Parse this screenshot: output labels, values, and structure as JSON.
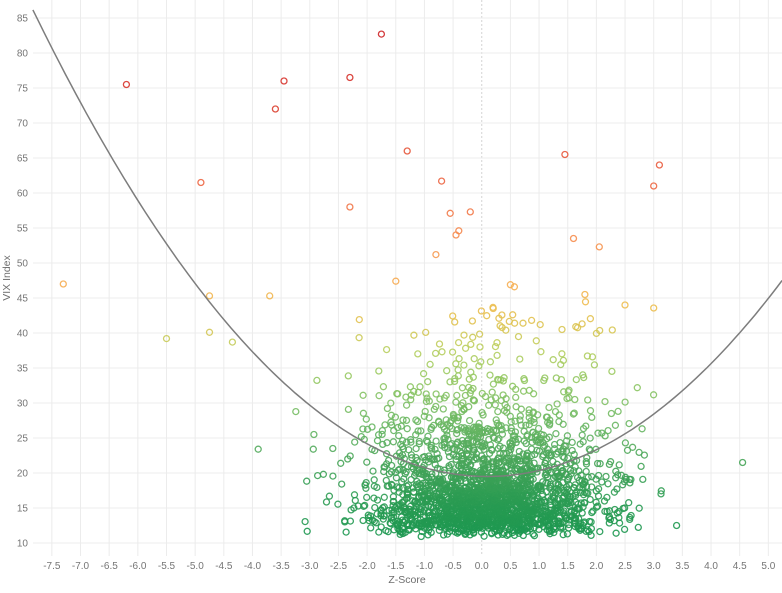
{
  "chart_data": {
    "type": "scatter",
    "title": "",
    "xlabel": "Z-Score",
    "ylabel": "VIX Index",
    "x_tick_labels": [
      "-7.5",
      "-7.0",
      "-6.5",
      "-6.0",
      "-5.5",
      "-5.0",
      "-4.5",
      "-4.0",
      "-3.5",
      "-3.0",
      "-2.5",
      "-2.0",
      "-1.5",
      "-1.0",
      "-0.5",
      "0.0",
      "0.5",
      "1.0",
      "1.5",
      "2.0",
      "2.5",
      "3.0",
      "3.5",
      "4.0",
      "4.5",
      "5.0"
    ],
    "y_tick_labels": [
      "10",
      "15",
      "20",
      "25",
      "30",
      "35",
      "40",
      "45",
      "50",
      "55",
      "60",
      "65",
      "70",
      "75",
      "80",
      "85"
    ],
    "xlim": [
      -7.83,
      5.24
    ],
    "ylim": [
      8.1,
      87.6
    ],
    "grid": true,
    "legend": "none",
    "colors": {
      "background": "#ffffff",
      "grid": "#ececec",
      "zero_line": "#d4d4d4",
      "tick_text": "#757575",
      "fit_curve": "#7d7d7d"
    },
    "marker": {
      "shape": "open-circle",
      "radius": 3.0,
      "stroke_width": 1.3,
      "opacity": 0.9
    },
    "color_scale_by_vix": [
      [
        10,
        "#199750"
      ],
      [
        16,
        "#2a9b52"
      ],
      [
        22,
        "#4aa65a"
      ],
      [
        27,
        "#6ab763"
      ],
      [
        31,
        "#84c264"
      ],
      [
        35,
        "#a0cc63"
      ],
      [
        38,
        "#bccf5e"
      ],
      [
        41,
        "#ddc452"
      ],
      [
        44,
        "#eebd4e"
      ],
      [
        47,
        "#f6ad52"
      ],
      [
        51,
        "#f79b51"
      ],
      [
        55,
        "#f5854c"
      ],
      [
        59,
        "#f07046"
      ],
      [
        64,
        "#e95c3e"
      ],
      [
        70,
        "#df4733"
      ],
      [
        76,
        "#d7332b"
      ],
      [
        85,
        "#cb2026"
      ]
    ],
    "fit_curve": {
      "type": "parabola",
      "equation": "vix = k + a*(z-h)^2",
      "a": 1.06,
      "h": 0.1,
      "k": 19.5,
      "z_domain": [
        -7.83,
        5.24
      ]
    },
    "outlier_points_z_vix": [
      [
        -6.2,
        75.5
      ],
      [
        -1.75,
        82.7
      ],
      [
        -3.45,
        76.0
      ],
      [
        -2.3,
        76.5
      ],
      [
        -3.6,
        72.0
      ],
      [
        -1.3,
        66.0
      ],
      [
        -0.7,
        61.7
      ],
      [
        -4.9,
        61.5
      ],
      [
        1.45,
        65.5
      ],
      [
        3.1,
        64.0
      ],
      [
        3.0,
        61.0
      ],
      [
        -2.3,
        58.0
      ],
      [
        -0.55,
        57.1
      ],
      [
        -0.2,
        57.3
      ],
      [
        -0.4,
        54.6
      ],
      [
        -0.45,
        54.0
      ],
      [
        -0.8,
        51.2
      ],
      [
        -1.5,
        47.4
      ],
      [
        -4.75,
        45.3
      ],
      [
        -3.7,
        45.3
      ],
      [
        -7.3,
        47.0
      ],
      [
        1.6,
        53.5
      ],
      [
        2.05,
        52.3
      ],
      [
        0.5,
        46.9
      ],
      [
        0.57,
        46.6
      ],
      [
        1.8,
        45.5
      ],
      [
        2.5,
        44.0
      ],
      [
        0.2,
        43.5
      ],
      [
        -4.75,
        40.1
      ],
      [
        -5.5,
        39.2
      ],
      [
        -4.35,
        38.7
      ],
      [
        0.3,
        42.1
      ],
      [
        0.42,
        40.4
      ],
      [
        0.72,
        41.4
      ],
      [
        0.87,
        41.8
      ],
      [
        1.02,
        41.2
      ],
      [
        1.4,
        40.5
      ],
      [
        1.64,
        40.9
      ],
      [
        1.75,
        41.3
      ],
      [
        -0.31,
        39.7
      ],
      [
        -0.03,
        38.0
      ],
      [
        -3.9,
        23.4
      ],
      [
        4.55,
        21.5
      ],
      [
        3.4,
        12.5
      ]
    ],
    "dense_cluster": {
      "description": "dense cloud of open circles centered near z=0.1, VIX 11-44, color-graded green (low VIX) to yellow (high VIX)",
      "n": 2400,
      "seed": 42,
      "z_mean": 0.1,
      "z_sd": 1.02,
      "z_min": -3.35,
      "z_max": 3.35,
      "v_base": 10.8,
      "v_halfnormal_scale": 2.2,
      "v_exp_mean": 6.0,
      "v_parabola_lift": 0.05,
      "v_max": 44.5
    }
  }
}
